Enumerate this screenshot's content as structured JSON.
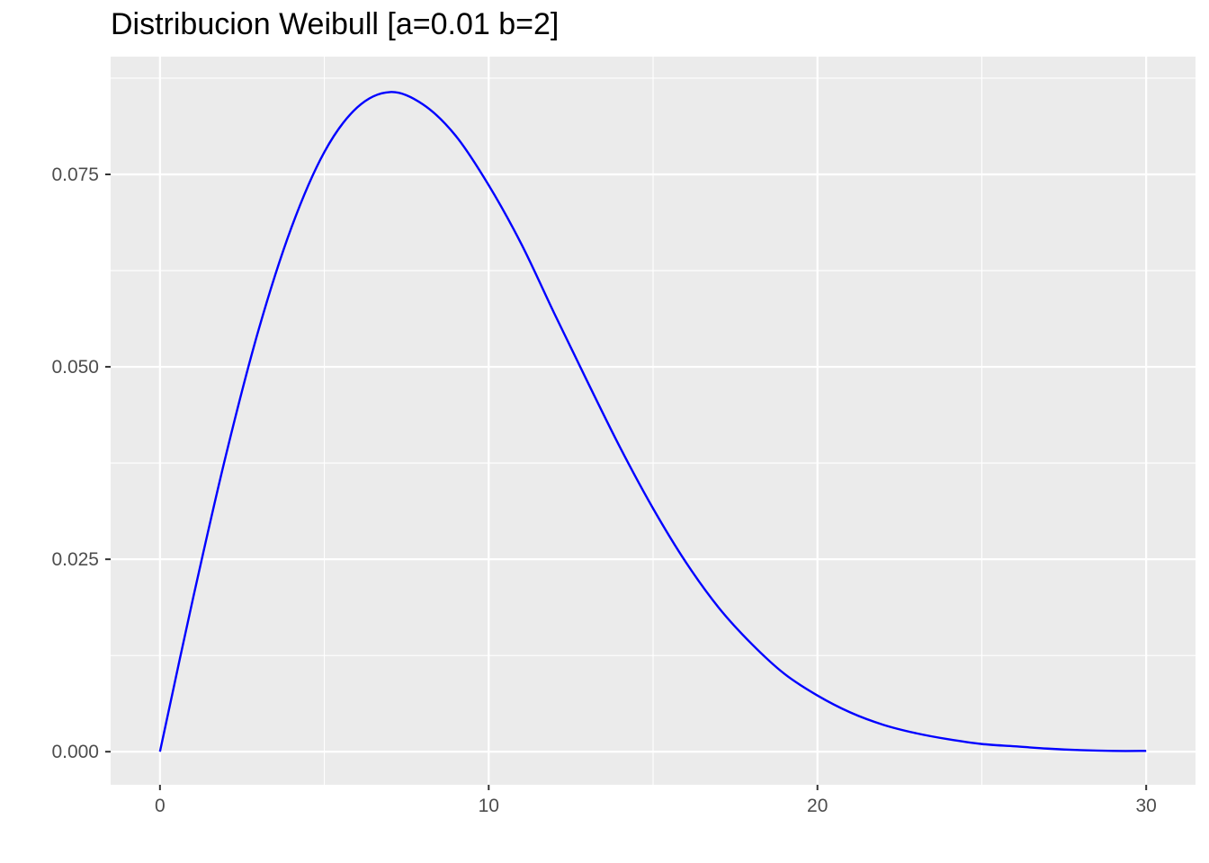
{
  "chart_data": {
    "type": "line",
    "title": "Distribucion Weibull [a=0.01 b=2]",
    "xlabel": "",
    "ylabel": "",
    "xlim": [
      -1.5,
      31.5
    ],
    "ylim": [
      -0.0043,
      0.0903
    ],
    "x_ticks": [
      0,
      10,
      20,
      30
    ],
    "x_tick_labels": [
      "0",
      "10",
      "20",
      "30"
    ],
    "y_ticks": [
      0.0,
      0.025,
      0.05,
      0.075
    ],
    "y_tick_labels": [
      "0.000",
      "0.025",
      "0.050",
      "0.075"
    ],
    "grid": true,
    "series": [
      {
        "color": "#0000ff",
        "x": [
          0,
          1,
          2,
          3,
          4,
          5,
          6,
          7,
          8,
          9,
          10,
          11,
          12,
          13,
          14,
          15,
          16,
          17,
          18,
          19,
          20,
          21,
          22,
          23,
          24,
          25,
          26,
          27,
          28,
          29,
          30
        ],
        "y": [
          0.0,
          0.0198,
          0.0384,
          0.0548,
          0.0681,
          0.0779,
          0.0837,
          0.0857,
          0.0841,
          0.08,
          0.0736,
          0.0659,
          0.0569,
          0.0481,
          0.0395,
          0.0316,
          0.0246,
          0.0187,
          0.014,
          0.0101,
          0.0073,
          0.0051,
          0.0035,
          0.0024,
          0.0016,
          0.001,
          0.0007,
          0.0004,
          0.0002,
          0.0001,
          0.0001
        ]
      }
    ],
    "colors": {
      "panel": "#ebebeb",
      "grid": "#ffffff",
      "tick": "#333333",
      "tick_label": "#4d4d4d"
    }
  }
}
